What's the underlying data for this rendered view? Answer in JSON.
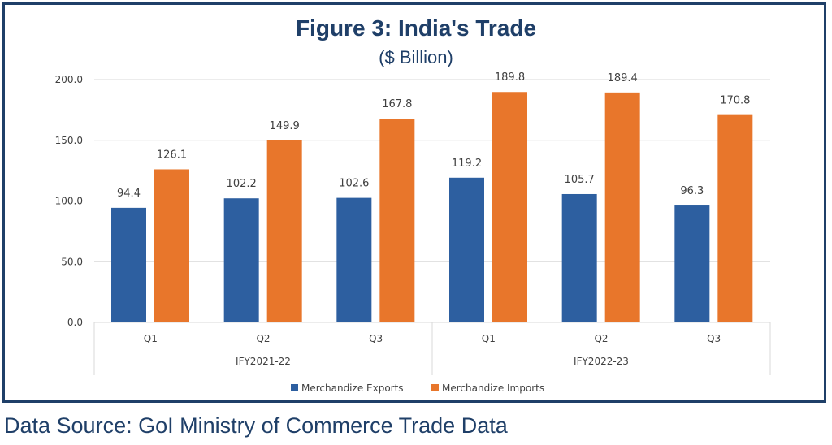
{
  "colors": {
    "frame": "#1f3f68",
    "exports": "#2d5fa0",
    "imports": "#e8762b",
    "grid": "#d9d9d9",
    "text": "#404040"
  },
  "chart_data": {
    "type": "bar",
    "title": "Figure 3: India's Trade",
    "subtitle": "($ Billion)",
    "categories": [
      "Q1",
      "Q2",
      "Q3",
      "Q1",
      "Q2",
      "Q3"
    ],
    "groups": [
      {
        "label": "IFY2021-22",
        "count": 3
      },
      {
        "label": "IFY2022-23",
        "count": 3
      }
    ],
    "series": [
      {
        "name": "Merchandize Exports",
        "values": [
          94.4,
          102.2,
          102.6,
          119.2,
          105.7,
          96.3
        ]
      },
      {
        "name": "Merchandize Imports",
        "values": [
          126.1,
          149.9,
          167.8,
          189.8,
          189.4,
          170.8
        ]
      }
    ],
    "yticks": [
      "0.0",
      "50.0",
      "100.0",
      "150.0",
      "200.0"
    ],
    "ylim": [
      0,
      200
    ],
    "grid": true,
    "legend": "bottom"
  },
  "source": "Data Source: GoI Ministry of Commerce Trade Data"
}
